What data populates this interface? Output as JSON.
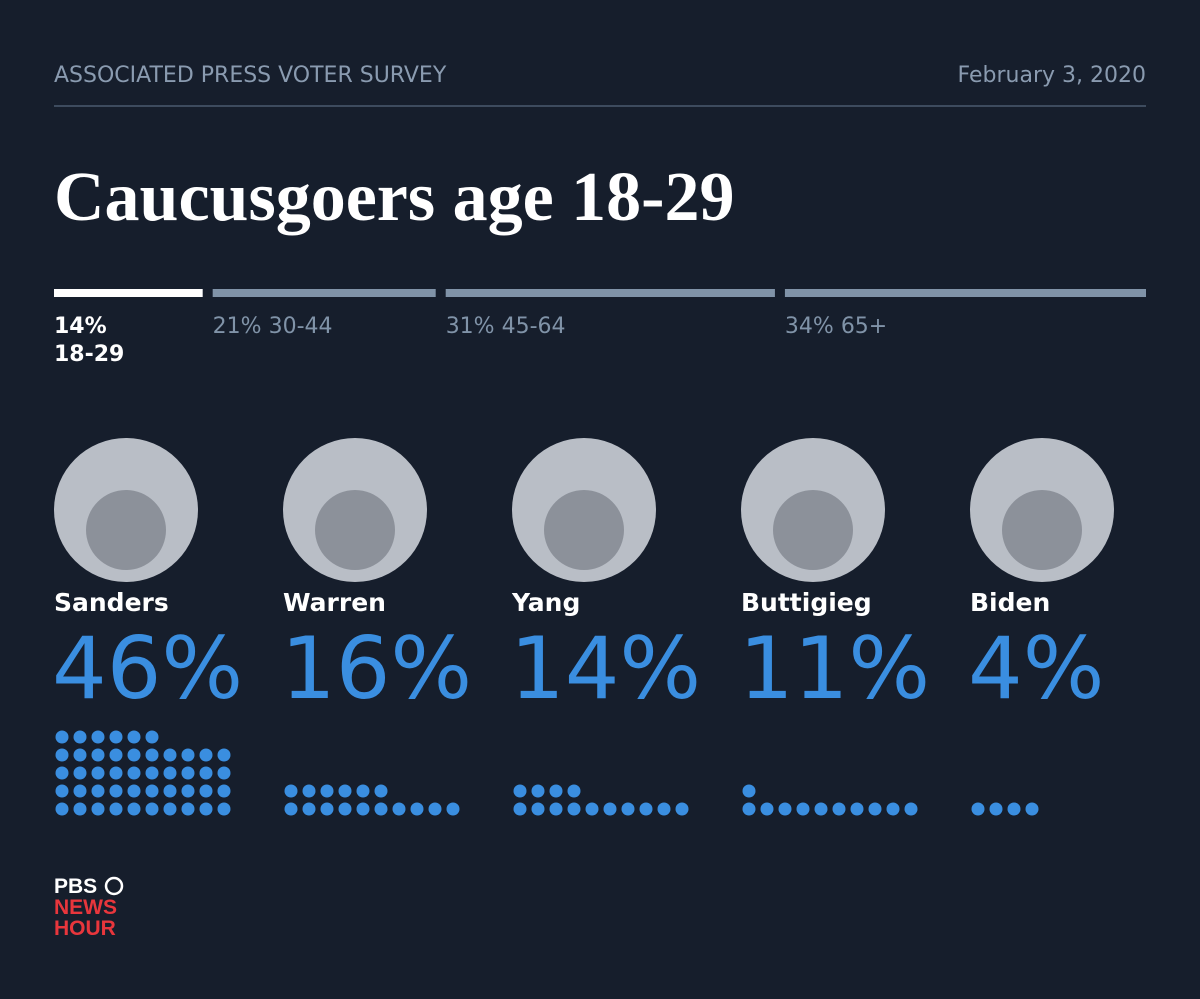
{
  "header": {
    "source": "ASSOCIATED PRESS VOTER SURVEY",
    "date": "February 3, 2020"
  },
  "chart_data": [
    {
      "type": "segments",
      "title": "Caucusgoers age 18-29",
      "categories": [
        "18-29",
        "30-44",
        "45-64",
        "65+"
      ],
      "values": [
        14,
        21,
        31,
        34
      ],
      "value_labels": [
        "14%",
        "21%",
        "31%",
        "34%"
      ],
      "colors": [
        "#ffffff",
        "#8093a8",
        "#8093a8",
        "#8093a8"
      ]
    },
    {
      "type": "dots",
      "categories": [
        "Sanders",
        "Warren",
        "Yang",
        "Buttigieg",
        "Biden"
      ],
      "values": [
        46,
        16,
        14,
        11,
        4
      ],
      "value_labels": [
        "46%",
        "16%",
        "14%",
        "11%",
        "4%"
      ],
      "color": "#3a8ee0"
    }
  ],
  "logo": {
    "lines": [
      "PBS",
      "NEWS",
      "HOUR"
    ]
  }
}
